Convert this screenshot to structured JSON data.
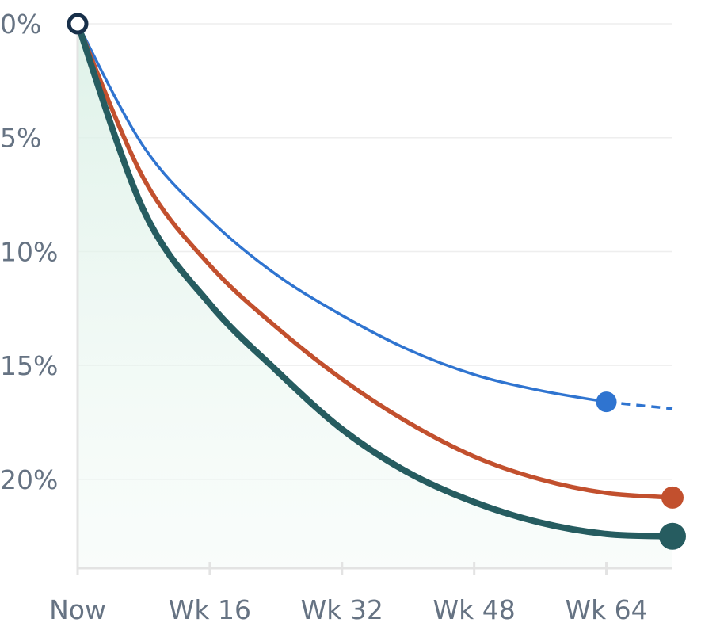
{
  "chart_data": {
    "type": "line",
    "x_tick_labels": [
      "Now",
      "Wk 16",
      "Wk 32",
      "Wk 48",
      "Wk 64"
    ],
    "x_ticks": [
      0,
      16,
      32,
      48,
      64
    ],
    "y_tick_labels": [
      "0%",
      "5%",
      "10%",
      "15%",
      "20%"
    ],
    "y_ticks": [
      0,
      5,
      10,
      15,
      20
    ],
    "xlim": [
      0,
      72
    ],
    "ylim": [
      0,
      23.9
    ],
    "y_inverted": true,
    "grid": true,
    "series": [
      {
        "color": "#2f74d0",
        "x": [
          0,
          8,
          16,
          24,
          32,
          40,
          48,
          56,
          64,
          72
        ],
        "y": [
          0,
          5.4,
          8.6,
          11.0,
          12.8,
          14.3,
          15.4,
          16.1,
          16.6,
          16.9
        ],
        "solid_until_x": 64,
        "projected_after": "dashed",
        "end_marker": true
      },
      {
        "color": "#c2502e",
        "x": [
          0,
          8,
          16,
          24,
          32,
          40,
          48,
          56,
          64,
          72
        ],
        "y": [
          0,
          6.8,
          10.6,
          13.3,
          15.6,
          17.5,
          19.0,
          20.0,
          20.6,
          20.8
        ],
        "end_marker": true
      },
      {
        "color": "#265c60",
        "x": [
          0,
          8,
          16,
          24,
          32,
          40,
          48,
          56,
          64,
          72
        ],
        "y": [
          0,
          8.2,
          12.3,
          15.2,
          17.8,
          19.7,
          21.0,
          21.9,
          22.4,
          22.5
        ],
        "end_marker": true,
        "area_fill": "#e3f3ec"
      }
    ],
    "start_marker": {
      "x": 0,
      "y": 0,
      "stroke": "#18304a"
    }
  }
}
